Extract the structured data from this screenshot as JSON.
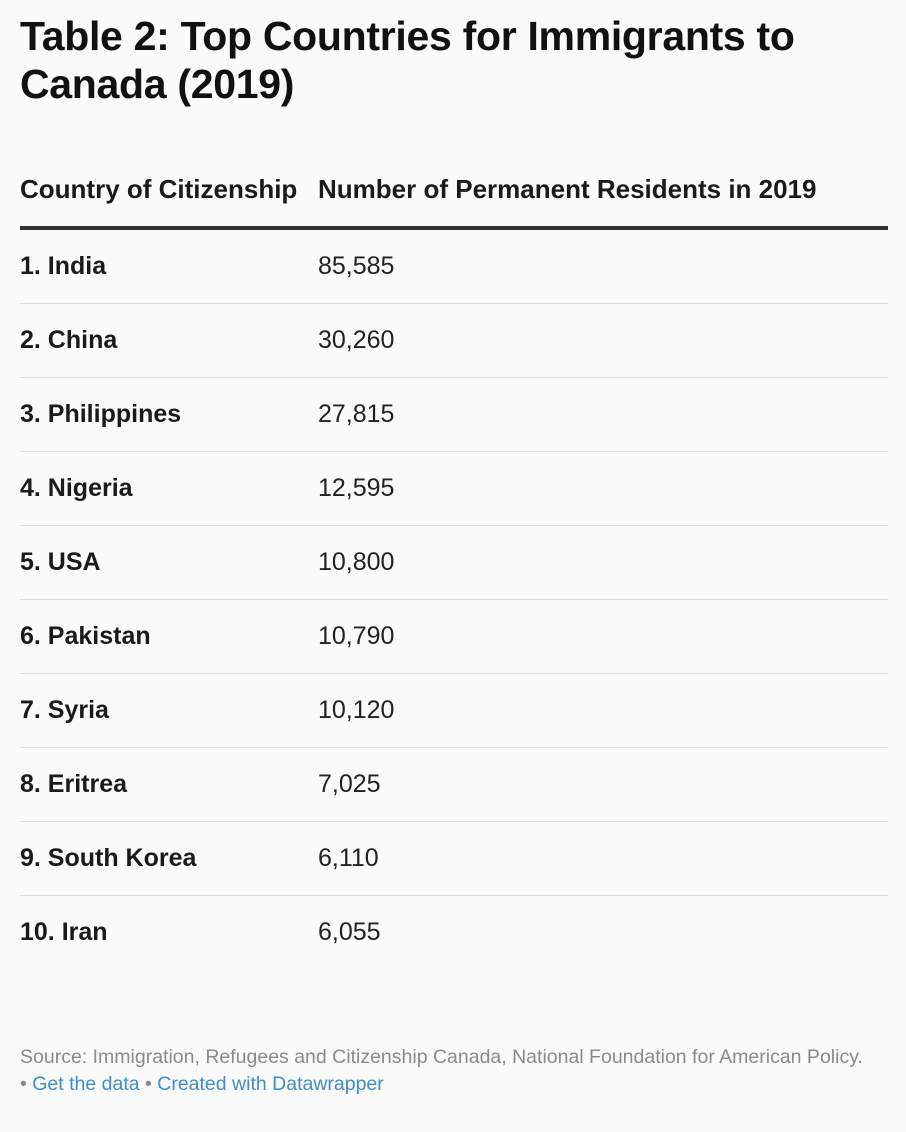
{
  "title": "Table 2: Top Countries for Immigrants to Canada (2019)",
  "columns": {
    "country": "Country of Citizenship",
    "value": "Number of Permanent Residents in 2019"
  },
  "rows": [
    {
      "country": "1. India",
      "value": "85,585"
    },
    {
      "country": "2. China",
      "value": "30,260"
    },
    {
      "country": "3. Philippines",
      "value": "27,815"
    },
    {
      "country": "4. Nigeria",
      "value": "12,595"
    },
    {
      "country": "5. USA",
      "value": "10,800"
    },
    {
      "country": "6. Pakistan",
      "value": "10,790"
    },
    {
      "country": "7. Syria",
      "value": "10,120"
    },
    {
      "country": "8. Eritrea",
      "value": "7,025"
    },
    {
      "country": "9. South Korea",
      "value": "6,110"
    },
    {
      "country": "10. Iran",
      "value": "6,055"
    }
  ],
  "footer": {
    "source": "Source: Immigration, Refugees and Citizenship Canada, National Foundation for American Policy.",
    "separator": "•",
    "get_data_label": "Get the data",
    "created_with_label": "Created with Datawrapper"
  },
  "colors": {
    "link": "#3d8fc4",
    "rule": "#333333",
    "row_divider": "#dcdcdc",
    "footer_text": "#8a8a8a"
  },
  "chart_data": {
    "type": "table",
    "title": "Table 2: Top Countries for Immigrants to Canada (2019)",
    "columns": [
      "Country of Citizenship",
      "Number of Permanent Residents in 2019"
    ],
    "categories": [
      "India",
      "China",
      "Philippines",
      "Nigeria",
      "USA",
      "Pakistan",
      "Syria",
      "Eritrea",
      "South Korea",
      "Iran"
    ],
    "values": [
      85585,
      30260,
      27815,
      12595,
      10800,
      10790,
      10120,
      7025,
      6110,
      6055
    ]
  }
}
